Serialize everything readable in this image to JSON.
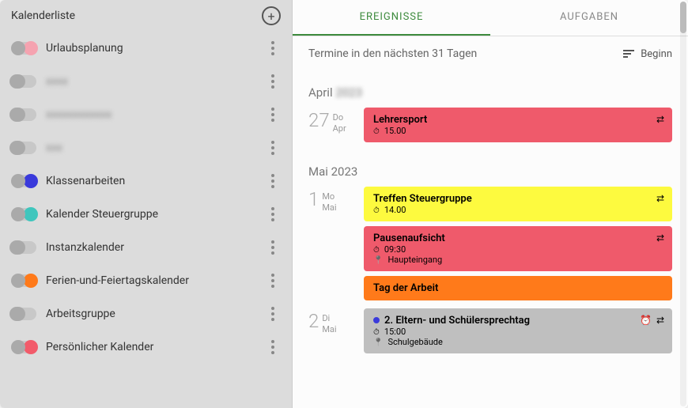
{
  "sidebar": {
    "title": "Kalenderliste",
    "calendars": [
      {
        "label": "Urlaubsplanung",
        "color": "#f5a3b0",
        "on": true,
        "blurred": false
      },
      {
        "label": "xxxx",
        "color": "#aaaaaa",
        "on": false,
        "blurred": true
      },
      {
        "label": "xxxxxxxxxxxx",
        "color": "#aaaaaa",
        "on": false,
        "blurred": true
      },
      {
        "label": "xxx",
        "color": "#aaaaaa",
        "on": false,
        "blurred": true
      },
      {
        "label": "Klassenarbeiten",
        "color": "#3a3adb",
        "on": true,
        "blurred": false
      },
      {
        "label": "Kalender Steuergruppe",
        "color": "#3fc6bd",
        "on": true,
        "blurred": false
      },
      {
        "label": "Instanzkalender",
        "color": "#aaaaaa",
        "on": false,
        "blurred": false
      },
      {
        "label": "Ferien-und-Feiertagskalender",
        "color": "#ff7a1a",
        "on": true,
        "blurred": false
      },
      {
        "label": "Arbeitsgruppe",
        "color": "#aaaaaa",
        "on": false,
        "blurred": false
      },
      {
        "label": "Persönlicher Kalender",
        "color": "#f25b6a",
        "on": true,
        "blurred": false
      }
    ]
  },
  "tabs": {
    "events": "EREIGNISSE",
    "tasks": "AUFGABEN",
    "active": "events"
  },
  "subheader": {
    "text": "Termine in den nächsten 31 Tagen",
    "sort_label": "Beginn"
  },
  "months": [
    {
      "label": "April",
      "year_blurred": "2023",
      "days": [
        {
          "num": "27",
          "dow": "Do",
          "mon": "Apr",
          "events": [
            {
              "title": "Lehrersport",
              "time": "15.00",
              "bg": "#ef5a6b",
              "fg": "#000000",
              "repeat": true
            }
          ]
        }
      ]
    },
    {
      "label": "Mai 2023",
      "days": [
        {
          "num": "1",
          "dow": "Mo",
          "mon": "Mai",
          "events": [
            {
              "title": "Treffen Steuergruppe",
              "time": "14.00",
              "bg": "#fdfa3f",
              "fg": "#000000",
              "repeat": true
            },
            {
              "title": "Pausenaufsicht",
              "time": "09:30",
              "location": "Haupteingang",
              "bg": "#ef5a6b",
              "fg": "#000000",
              "repeat": true
            },
            {
              "title": "Tag der Arbeit",
              "bg": "#ff7a1a",
              "fg": "#000000",
              "allday": true
            }
          ]
        },
        {
          "num": "2",
          "dow": "Di",
          "mon": "Mai",
          "events": [
            {
              "title": "2. Eltern- und Schülersprechtag",
              "time": "15:00",
              "location": "Schulgebäude",
              "bg": "#bfbfbf",
              "fg": "#000000",
              "dot": "#3a3adb",
              "alarm": true,
              "repeat": true
            }
          ]
        }
      ]
    }
  ]
}
